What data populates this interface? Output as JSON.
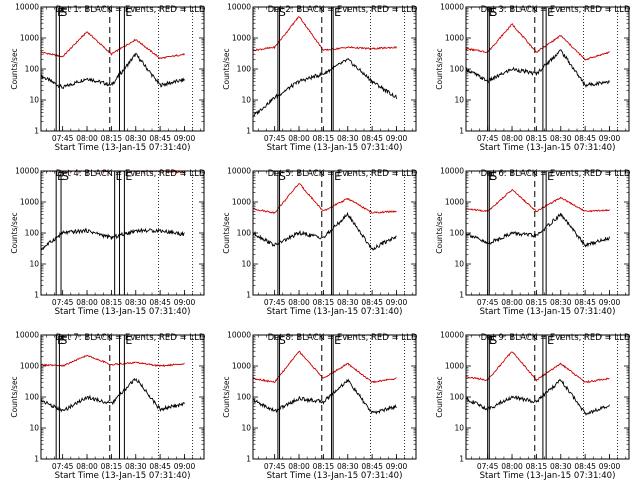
{
  "figure": {
    "common": {
      "xlabel": "Start Time (13-Jan-15 07:31:40)",
      "ylabel": "Counts/sec",
      "title_suffix": " BLACK = Events, RED = LLD",
      "x_ticks": [
        "07:45",
        "08:00",
        "08:15",
        "08:30",
        "08:45",
        "09:00"
      ],
      "y_ticks": [
        "1",
        "10",
        "100",
        "1000",
        "10000"
      ],
      "series_colors": {
        "events": "#000000",
        "lld": "#cc0000"
      }
    }
  },
  "chart_data": [
    {
      "type": "line",
      "title": "Det 1: BLACK = Events, RED = LLD",
      "ylim": [
        1,
        10000
      ],
      "yscale": "log",
      "x": [
        "07:31:40",
        "07:45",
        "08:00",
        "08:15",
        "08:30",
        "08:45",
        "09:00"
      ],
      "series": [
        {
          "values": [
            60,
            25,
            50,
            30,
            300,
            30,
            45
          ]
        },
        {
          "values": [
            350,
            250,
            1600,
            300,
            900,
            220,
            300
          ]
        }
      ],
      "annotations": [
        {
          "kind": "solid-vline",
          "x": "07:41",
          "label": "E"
        },
        {
          "kind": "solid-vline",
          "x": "07:43",
          "label": "S"
        },
        {
          "kind": "dashed-vline",
          "x": "08:14"
        },
        {
          "kind": "solid-vline",
          "x": "08:20"
        },
        {
          "kind": "solid-vline",
          "x": "08:23",
          "label": "E"
        },
        {
          "kind": "dotted-vline",
          "x": "08:44"
        },
        {
          "kind": "dotted-vline",
          "x": "09:05"
        }
      ]
    },
    {
      "type": "line",
      "title": "Det 2: BLACK = Events, RED = LLD",
      "ylim": [
        1,
        10000
      ],
      "yscale": "log",
      "x": [
        "07:31:40",
        "07:45",
        "08:00",
        "08:15",
        "08:30",
        "08:45",
        "09:00"
      ],
      "series": [
        {
          "values": [
            3,
            12,
            40,
            70,
            200,
            40,
            12
          ]
        },
        {
          "values": [
            400,
            500,
            5000,
            400,
            500,
            450,
            500
          ]
        }
      ],
      "annotations": [
        {
          "kind": "solid-vline",
          "x": "07:47",
          "label": "S"
        },
        {
          "kind": "solid-vline",
          "x": "07:48"
        },
        {
          "kind": "dashed-vline",
          "x": "08:14"
        },
        {
          "kind": "solid-vline",
          "x": "08:20"
        },
        {
          "kind": "solid-vline",
          "x": "08:21",
          "label": "E"
        },
        {
          "kind": "dotted-vline",
          "x": "08:44"
        },
        {
          "kind": "dotted-vline",
          "x": "09:05"
        }
      ]
    },
    {
      "type": "line",
      "title": "Det 3: BLACK = Events, RED = LLD",
      "ylim": [
        1,
        10000
      ],
      "yscale": "log",
      "x": [
        "07:31:40",
        "07:45",
        "08:00",
        "08:15",
        "08:30",
        "08:45",
        "09:00"
      ],
      "series": [
        {
          "values": [
            100,
            40,
            100,
            70,
            400,
            30,
            40
          ]
        },
        {
          "values": [
            450,
            350,
            2800,
            350,
            1200,
            200,
            350
          ]
        }
      ],
      "annotations": [
        {
          "kind": "solid-vline",
          "x": "07:45",
          "label": "E"
        },
        {
          "kind": "solid-vline",
          "x": "07:46",
          "label": "S"
        },
        {
          "kind": "dashed-vline",
          "x": "08:14"
        },
        {
          "kind": "solid-vline",
          "x": "08:19"
        },
        {
          "kind": "solid-vline",
          "x": "08:21",
          "label": "E"
        },
        {
          "kind": "dotted-vline",
          "x": "08:44"
        },
        {
          "kind": "dotted-vline",
          "x": "09:05"
        }
      ]
    },
    {
      "type": "line",
      "title": "Det 4: BLACK = Events, RED = LLD",
      "ylim": [
        1,
        10000
      ],
      "yscale": "log",
      "x": [
        "07:31:40",
        "07:45",
        "08:00",
        "08:15",
        "08:30",
        "08:45",
        "09:00"
      ],
      "series": [
        {
          "values": [
            30,
            100,
            120,
            70,
            120,
            120,
            90
          ]
        },
        {
          "values": [
            10000,
            10000,
            10000,
            10000,
            10000,
            10000,
            9000
          ]
        }
      ],
      "annotations": [
        {
          "kind": "solid-vline",
          "x": "07:41",
          "label": "E"
        },
        {
          "kind": "solid-vline",
          "x": "07:44",
          "label": "S"
        },
        {
          "kind": "solid-vline",
          "x": "08:17",
          "label": "L"
        },
        {
          "kind": "solid-vline",
          "x": "08:20"
        },
        {
          "kind": "solid-vline",
          "x": "08:23",
          "label": "E"
        },
        {
          "kind": "dotted-vline",
          "x": "08:44"
        },
        {
          "kind": "dotted-vline",
          "x": "09:05"
        }
      ]
    },
    {
      "type": "line",
      "title": "Det 5: BLACK = Events, RED = LLD",
      "ylim": [
        1,
        10000
      ],
      "yscale": "log",
      "x": [
        "07:31:40",
        "07:45",
        "08:00",
        "08:15",
        "08:30",
        "08:45",
        "09:00"
      ],
      "series": [
        {
          "values": [
            100,
            40,
            100,
            70,
            400,
            30,
            80
          ]
        },
        {
          "values": [
            600,
            450,
            4000,
            500,
            1300,
            450,
            500
          ]
        }
      ],
      "annotations": [
        {
          "kind": "solid-vline",
          "x": "07:47",
          "label": "S"
        },
        {
          "kind": "solid-vline",
          "x": "07:48"
        },
        {
          "kind": "dashed-vline",
          "x": "08:14"
        },
        {
          "kind": "solid-vline",
          "x": "08:20"
        },
        {
          "kind": "solid-vline",
          "x": "08:21",
          "label": "E"
        },
        {
          "kind": "dotted-vline",
          "x": "08:44"
        },
        {
          "kind": "dotted-vline",
          "x": "09:05"
        }
      ]
    },
    {
      "type": "line",
      "title": "Det 6: BLACK = Events, RED = LLD",
      "ylim": [
        1,
        10000
      ],
      "yscale": "log",
      "x": [
        "07:31:40",
        "07:45",
        "08:00",
        "08:15",
        "08:30",
        "08:45",
        "09:00"
      ],
      "series": [
        {
          "values": [
            100,
            45,
            100,
            80,
            400,
            40,
            70
          ]
        },
        {
          "values": [
            600,
            500,
            2500,
            500,
            1400,
            500,
            550
          ]
        }
      ],
      "annotations": [
        {
          "kind": "solid-vline",
          "x": "07:45",
          "label": "E"
        },
        {
          "kind": "solid-vline",
          "x": "07:46",
          "label": "S"
        },
        {
          "kind": "dashed-vline",
          "x": "08:14"
        },
        {
          "kind": "solid-vline",
          "x": "08:19"
        },
        {
          "kind": "solid-vline",
          "x": "08:21",
          "label": "E"
        },
        {
          "kind": "dotted-vline",
          "x": "08:44"
        },
        {
          "kind": "dotted-vline",
          "x": "09:05"
        }
      ]
    },
    {
      "type": "line",
      "title": "Det 7: BLACK = Events, RED = LLD",
      "ylim": [
        1,
        10000
      ],
      "yscale": "log",
      "x": [
        "07:31:40",
        "07:45",
        "08:00",
        "08:15",
        "08:30",
        "08:45",
        "09:00"
      ],
      "series": [
        {
          "values": [
            80,
            35,
            100,
            60,
            400,
            40,
            60
          ]
        },
        {
          "values": [
            1100,
            1000,
            2200,
            1100,
            1300,
            1000,
            1200
          ]
        }
      ],
      "annotations": [
        {
          "kind": "solid-vline",
          "x": "07:41",
          "label": "E"
        },
        {
          "kind": "solid-vline",
          "x": "07:43",
          "label": "S"
        },
        {
          "kind": "dashed-vline",
          "x": "08:14"
        },
        {
          "kind": "solid-vline",
          "x": "08:20"
        },
        {
          "kind": "solid-vline",
          "x": "08:23",
          "label": "E"
        },
        {
          "kind": "dotted-vline",
          "x": "08:44"
        },
        {
          "kind": "dotted-vline",
          "x": "09:05"
        }
      ]
    },
    {
      "type": "line",
      "title": "Det 8: BLACK = Events, RED = LLD",
      "ylim": [
        1,
        10000
      ],
      "yscale": "log",
      "x": [
        "07:31:40",
        "07:45",
        "08:00",
        "08:15",
        "08:30",
        "08:45",
        "09:00"
      ],
      "series": [
        {
          "values": [
            80,
            35,
            90,
            70,
            350,
            30,
            50
          ]
        },
        {
          "values": [
            400,
            300,
            3000,
            400,
            1200,
            300,
            400
          ]
        }
      ],
      "annotations": [
        {
          "kind": "solid-vline",
          "x": "07:47",
          "label": "S"
        },
        {
          "kind": "solid-vline",
          "x": "07:48"
        },
        {
          "kind": "dashed-vline",
          "x": "08:14"
        },
        {
          "kind": "solid-vline",
          "x": "08:20"
        },
        {
          "kind": "solid-vline",
          "x": "08:21",
          "label": "E"
        },
        {
          "kind": "dotted-vline",
          "x": "08:44"
        },
        {
          "kind": "dotted-vline",
          "x": "09:05"
        }
      ]
    },
    {
      "type": "line",
      "title": "Det 9: BLACK = Events, RED = LLD",
      "ylim": [
        1,
        10000
      ],
      "yscale": "log",
      "x": [
        "07:31:40",
        "07:45",
        "08:00",
        "08:15",
        "08:30",
        "08:45",
        "09:00"
      ],
      "series": [
        {
          "values": [
            90,
            40,
            100,
            70,
            350,
            30,
            50
          ]
        },
        {
          "values": [
            450,
            350,
            3000,
            350,
            1200,
            300,
            400
          ]
        }
      ],
      "annotations": [
        {
          "kind": "solid-vline",
          "x": "07:45",
          "label": "E"
        },
        {
          "kind": "solid-vline",
          "x": "07:46",
          "label": "S"
        },
        {
          "kind": "dashed-vline",
          "x": "08:14"
        },
        {
          "kind": "solid-vline",
          "x": "08:19"
        },
        {
          "kind": "solid-vline",
          "x": "08:21",
          "label": "E"
        },
        {
          "kind": "dotted-vline",
          "x": "08:44"
        },
        {
          "kind": "dotted-vline",
          "x": "09:05"
        }
      ]
    }
  ]
}
